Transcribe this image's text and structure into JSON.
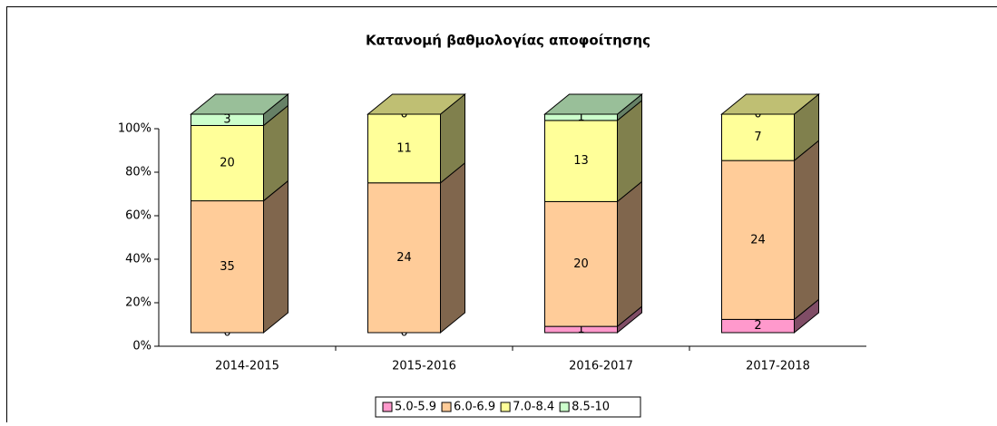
{
  "chart_data": {
    "type": "bar3d",
    "stacking": "percent",
    "title": "Κατανομή βαθμολογίας αποφοίτησης",
    "categories": [
      "2014-2015",
      "2015-2016",
      "2016-2017",
      "2017-2018"
    ],
    "series": [
      {
        "name": "5.0-5.9",
        "color": "#ff99cc",
        "values": [
          0,
          0,
          1,
          2
        ]
      },
      {
        "name": "6.0-6.9",
        "color": "#ffcc99",
        "values": [
          35,
          24,
          20,
          24
        ]
      },
      {
        "name": "7.0-8.4",
        "color": "#ffff99",
        "values": [
          20,
          11,
          13,
          7
        ]
      },
      {
        "name": "8.5-10",
        "color": "#ccffcc",
        "values": [
          3,
          0,
          1,
          0
        ]
      }
    ],
    "ylim": [
      0,
      100
    ],
    "yticks": [
      {
        "value": 0,
        "label": "0%"
      },
      {
        "value": 20,
        "label": "20%"
      },
      {
        "value": 40,
        "label": "40%"
      },
      {
        "value": 60,
        "label": "60%"
      },
      {
        "value": 80,
        "label": "80%"
      },
      {
        "value": 100,
        "label": "100%"
      }
    ],
    "legend": "bottom"
  }
}
